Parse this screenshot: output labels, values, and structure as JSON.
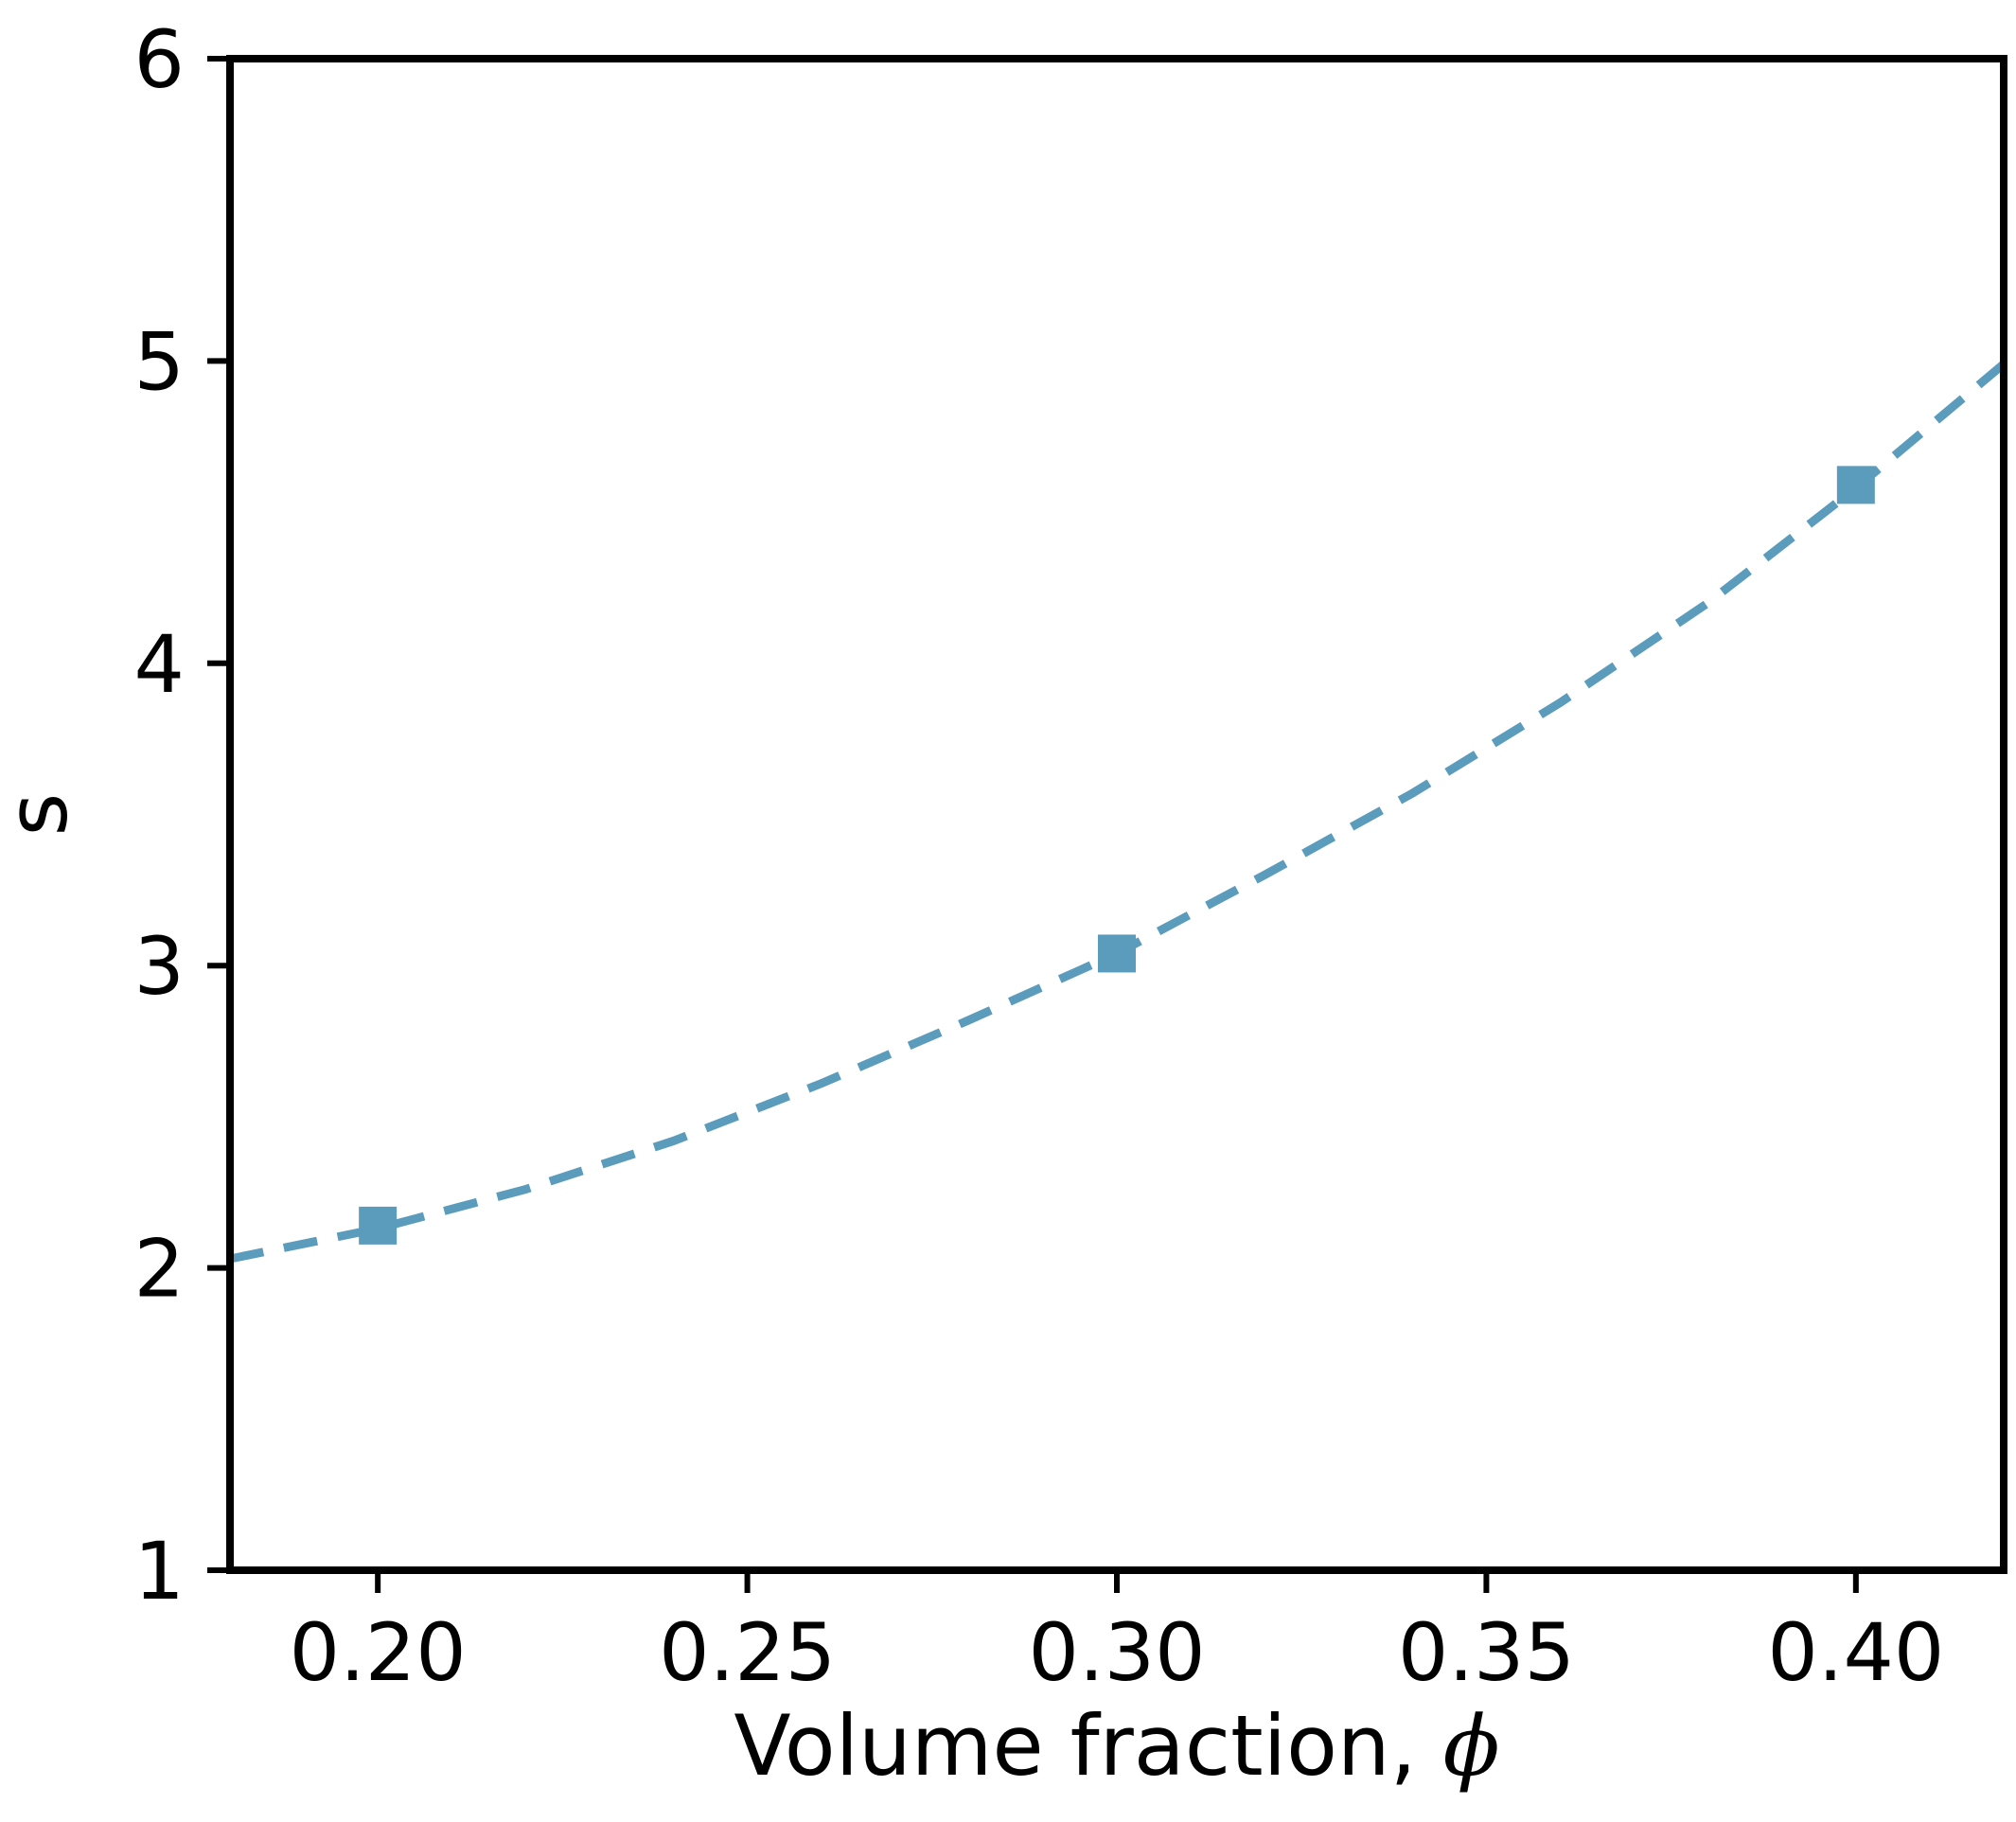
{
  "chart_data": {
    "type": "line",
    "xlabel": "Volume fraction, ",
    "xlabel_symbol": "ϕ",
    "ylabel": "s",
    "xlim": [
      0.18,
      0.42
    ],
    "ylim": [
      1,
      6
    ],
    "x_ticks": [
      0.2,
      0.25,
      0.3,
      0.35,
      0.4
    ],
    "x_tick_labels": [
      "0.20",
      "0.25",
      "0.30",
      "0.35",
      "0.40"
    ],
    "y_ticks": [
      1,
      2,
      3,
      4,
      5,
      6
    ],
    "y_tick_labels": [
      "1",
      "2",
      "3",
      "4",
      "5",
      "6"
    ],
    "grid": false,
    "series": [
      {
        "style": "markers",
        "marker": "square",
        "color": "#5b9bbb",
        "x": [
          0.2,
          0.3,
          0.4
        ],
        "y": [
          2.14,
          3.04,
          4.59
        ]
      },
      {
        "style": "dashed-line",
        "color": "#5b9bbb",
        "x": [
          0.18,
          0.2,
          0.22,
          0.24,
          0.26,
          0.28,
          0.3,
          0.32,
          0.34,
          0.36,
          0.38,
          0.4,
          0.42
        ],
        "y": [
          2.03,
          2.13,
          2.26,
          2.42,
          2.61,
          2.82,
          3.04,
          3.3,
          3.57,
          3.87,
          4.2,
          4.58,
          4.99
        ]
      }
    ]
  }
}
